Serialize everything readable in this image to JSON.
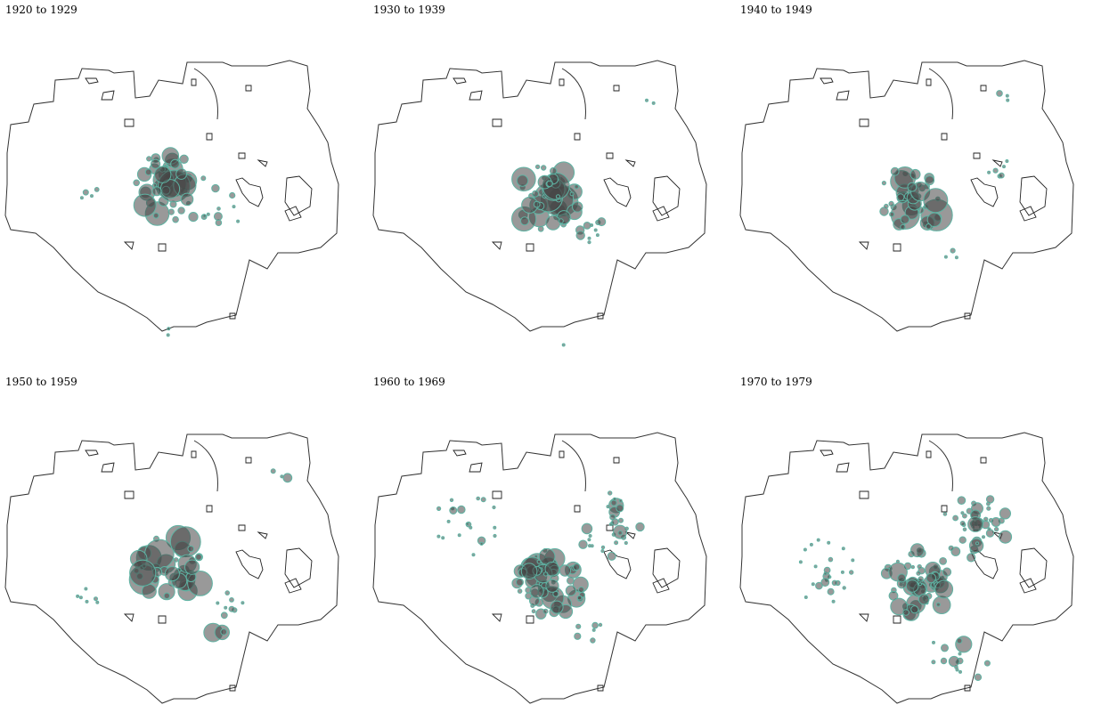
{
  "panels": [
    {
      "title": "1920 to 1929",
      "clusters": [
        [
          188,
          185,
          44,
          1.0
        ],
        [
          232,
          215,
          14,
          0.5
        ],
        [
          100,
          198,
          4,
          0.2
        ],
        [
          190,
          355,
          2,
          0.1
        ]
      ]
    },
    {
      "title": "1930 to 1939",
      "clusters": [
        [
          200,
          200,
          48,
          1.0
        ],
        [
          250,
          235,
          10,
          0.3
        ],
        [
          215,
          375,
          3,
          0.2
        ],
        [
          320,
          95,
          2,
          0.1
        ]
      ]
    },
    {
      "title": "1940 to 1949",
      "clusters": [
        [
          200,
          200,
          46,
          1.0
        ],
        [
          300,
          170,
          6,
          0.3
        ],
        [
          305,
          94,
          3,
          0.3
        ],
        [
          245,
          267,
          3,
          0.4
        ],
        [
          200,
          380,
          2,
          0.2
        ]
      ]
    },
    {
      "title": "1950 to 1959",
      "clusters": [
        [
          190,
          200,
          44,
          1.1
        ],
        [
          260,
          240,
          8,
          0.4
        ],
        [
          250,
          270,
          3,
          0.6
        ],
        [
          310,
          90,
          3,
          0.4
        ],
        [
          100,
          230,
          6,
          0.2
        ]
      ]
    },
    {
      "title": "1960 to 1969",
      "clusters": [
        [
          205,
          215,
          70,
          0.9
        ],
        [
          270,
          150,
          30,
          0.5
        ],
        [
          250,
          270,
          6,
          0.5
        ],
        [
          110,
          150,
          20,
          0.3
        ]
      ]
    },
    {
      "title": "1970 to 1979",
      "clusters": [
        [
          205,
          215,
          70,
          0.8
        ],
        [
          270,
          150,
          40,
          0.6
        ],
        [
          250,
          300,
          15,
          0.5
        ],
        [
          100,
          200,
          25,
          0.3
        ]
      ]
    }
  ]
}
